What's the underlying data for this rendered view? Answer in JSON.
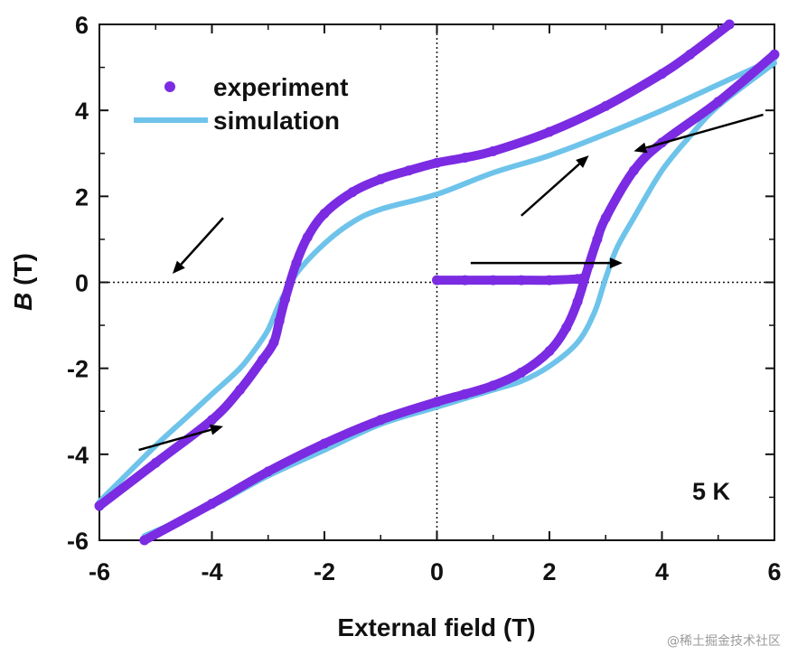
{
  "chart_data": {
    "type": "line",
    "title": "",
    "xlabel": "External field (T)",
    "ylabel_italic": "B",
    "ylabel_rest": " (T)",
    "xlim": [
      -6,
      6
    ],
    "ylim": [
      -6,
      6
    ],
    "xticks": [
      -6,
      -4,
      -2,
      0,
      2,
      4,
      6
    ],
    "yticks": [
      -6,
      -4,
      -2,
      0,
      2,
      4,
      6
    ],
    "reference_lines": {
      "x": 0,
      "y": 0,
      "style": "dotted"
    },
    "legend": {
      "position": "top-left",
      "entries": [
        "experiment",
        "simulation"
      ]
    },
    "annotation": "5 K",
    "colors": {
      "experiment": "#7b2be2",
      "simulation": "#6ec3ea",
      "arrows": "#000000"
    },
    "series": [
      {
        "name": "simulation",
        "style": "line",
        "branches": [
          {
            "x": [
              6,
              5,
              4,
              3,
              2,
              1,
              0,
              -1,
              -1.5,
              -2,
              -2.5,
              -2.8,
              -3.0,
              -3.2,
              -3.5,
              -4,
              -4.5,
              -5,
              -6
            ],
            "y": [
              5.2,
              4.6,
              4.0,
              3.45,
              2.95,
              2.55,
              2.05,
              1.7,
              1.4,
              0.9,
              0.2,
              -0.5,
              -1.1,
              -1.5,
              -2.0,
              -2.6,
              -3.2,
              -3.8,
              -5.1
            ]
          },
          {
            "x": [
              -5.2,
              -4,
              -3,
              -2,
              -1,
              0,
              1,
              1.5,
              2,
              2.5,
              2.8,
              3.0,
              3.2,
              3.5,
              4,
              4.5,
              5,
              6
            ],
            "y": [
              -5.9,
              -5.2,
              -4.5,
              -3.9,
              -3.3,
              -2.9,
              -2.5,
              -2.3,
              -1.95,
              -1.4,
              -0.7,
              0.1,
              0.8,
              1.5,
              2.6,
              3.4,
              4.1,
              5.1
            ]
          }
        ]
      },
      {
        "name": "experiment",
        "style": "points",
        "branches": [
          {
            "x": [
              5.2,
              4.5,
              4,
              3,
              2,
              1,
              0.5,
              0,
              -0.5,
              -1,
              -1.5,
              -2,
              -2.3,
              -2.5,
              -2.7,
              -2.8,
              -2.9,
              -3.1,
              -3.5,
              -4,
              -5,
              -6
            ],
            "y": [
              6.0,
              5.3,
              4.85,
              4.1,
              3.5,
              3.05,
              2.9,
              2.78,
              2.6,
              2.4,
              2.1,
              1.6,
              1.05,
              0.45,
              -0.4,
              -0.9,
              -1.4,
              -1.8,
              -2.5,
              -3.2,
              -4.2,
              -5.2
            ]
          },
          {
            "x": [
              -5.2,
              -4,
              -3,
              -2,
              -1,
              0,
              0.5,
              1,
              1.5,
              2,
              2.3,
              2.5,
              2.7,
              2.85,
              3.0,
              3.5,
              4,
              5,
              6
            ],
            "y": [
              -6.0,
              -5.15,
              -4.4,
              -3.75,
              -3.2,
              -2.78,
              -2.6,
              -2.4,
              -2.1,
              -1.6,
              -1.05,
              -0.45,
              0.4,
              1.0,
              1.5,
              2.6,
              3.25,
              4.2,
              5.3
            ]
          },
          {
            "x": [
              0,
              0.5,
              1,
              1.5,
              2,
              2.5,
              2.6
            ],
            "y": [
              0.05,
              0.05,
              0.05,
              0.05,
              0.05,
              0.08,
              0.1
            ]
          }
        ]
      }
    ],
    "arrows": [
      {
        "from": [
          0.6,
          0.45
        ],
        "to": [
          3.3,
          0.45
        ]
      },
      {
        "from": [
          5.8,
          3.9
        ],
        "to": [
          3.5,
          3.05
        ]
      },
      {
        "from": [
          -5.3,
          -3.9
        ],
        "to": [
          -3.8,
          -3.35
        ]
      },
      {
        "from": [
          -3.8,
          1.5
        ],
        "to": [
          -4.7,
          0.2
        ]
      },
      {
        "from": [
          1.5,
          1.55
        ],
        "to": [
          2.7,
          2.95
        ]
      }
    ]
  }
}
